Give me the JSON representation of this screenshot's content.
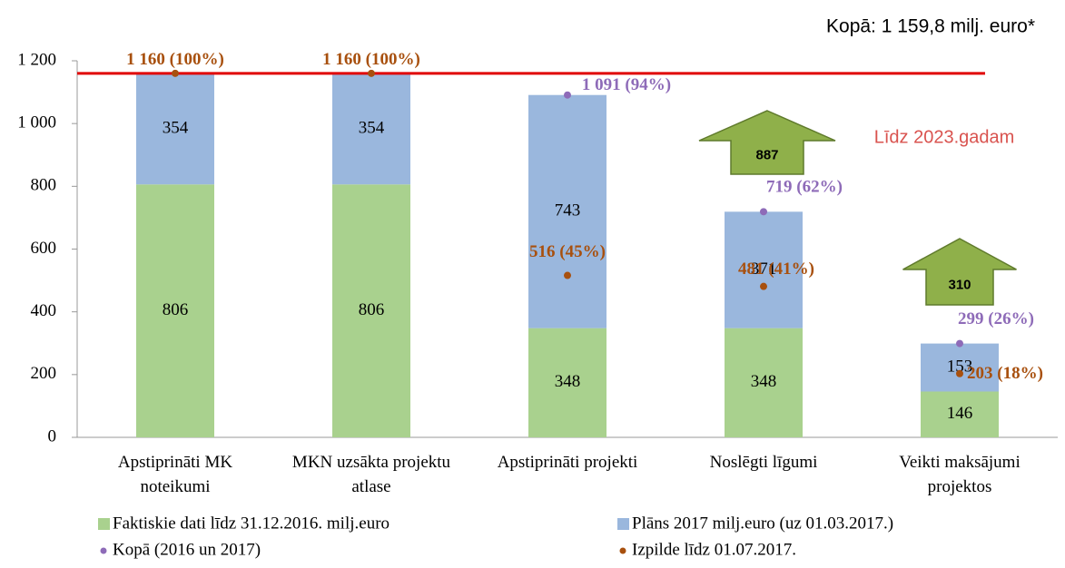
{
  "chart_data": {
    "type": "bar",
    "stacked": true,
    "title": "Kopā: 1 159,8 milj. euro*",
    "categories": [
      "Apstiprināti MK noteikumi",
      "MKN uzsākta projektu atlase",
      "Apstiprināti projekti",
      "Noslēgti līgumi",
      "Veikti maksājumi projektos"
    ],
    "series": [
      {
        "name": "Faktiskie dati līdz 31.12.2016. milj.euro",
        "color": "#a9d18e",
        "values": [
          806,
          806,
          348,
          348,
          146
        ]
      },
      {
        "name": "Plāns 2017 milj.euro (uz 01.03.2017.)",
        "color": "#9ab7dd",
        "values": [
          354,
          354,
          743,
          371,
          153
        ]
      }
    ],
    "points": [
      {
        "name": "Kopā (2016 un 2017)",
        "color": "#8e6bb8",
        "values": [
          null,
          null,
          1091,
          719,
          299
        ],
        "value_labels": [
          null,
          null,
          "1 091 (94%)",
          "719 (62%)",
          "299 (26%)"
        ]
      },
      {
        "name": "Izpilde līdz 01.07.2017.",
        "color": "#a8500e",
        "values": [
          1160,
          1160,
          516,
          481,
          203
        ],
        "value_labels": [
          "1 160 (100%)",
          "1 160 (100%)",
          "516 (45%)",
          "481 (41%)",
          "203 (18%)"
        ]
      }
    ],
    "target_line": {
      "value": 1160,
      "color": "#e00000",
      "label": "Līdz 2023.gadam"
    },
    "arrows": [
      {
        "label": "887",
        "category": 3
      },
      {
        "label": "310",
        "category": 4
      }
    ],
    "ylim": [
      0,
      1200
    ],
    "yticks": [
      0,
      200,
      400,
      600,
      800,
      {
        "value": 1000,
        "label": "1 000"
      },
      {
        "value": 1200,
        "label": "1 200"
      }
    ]
  }
}
